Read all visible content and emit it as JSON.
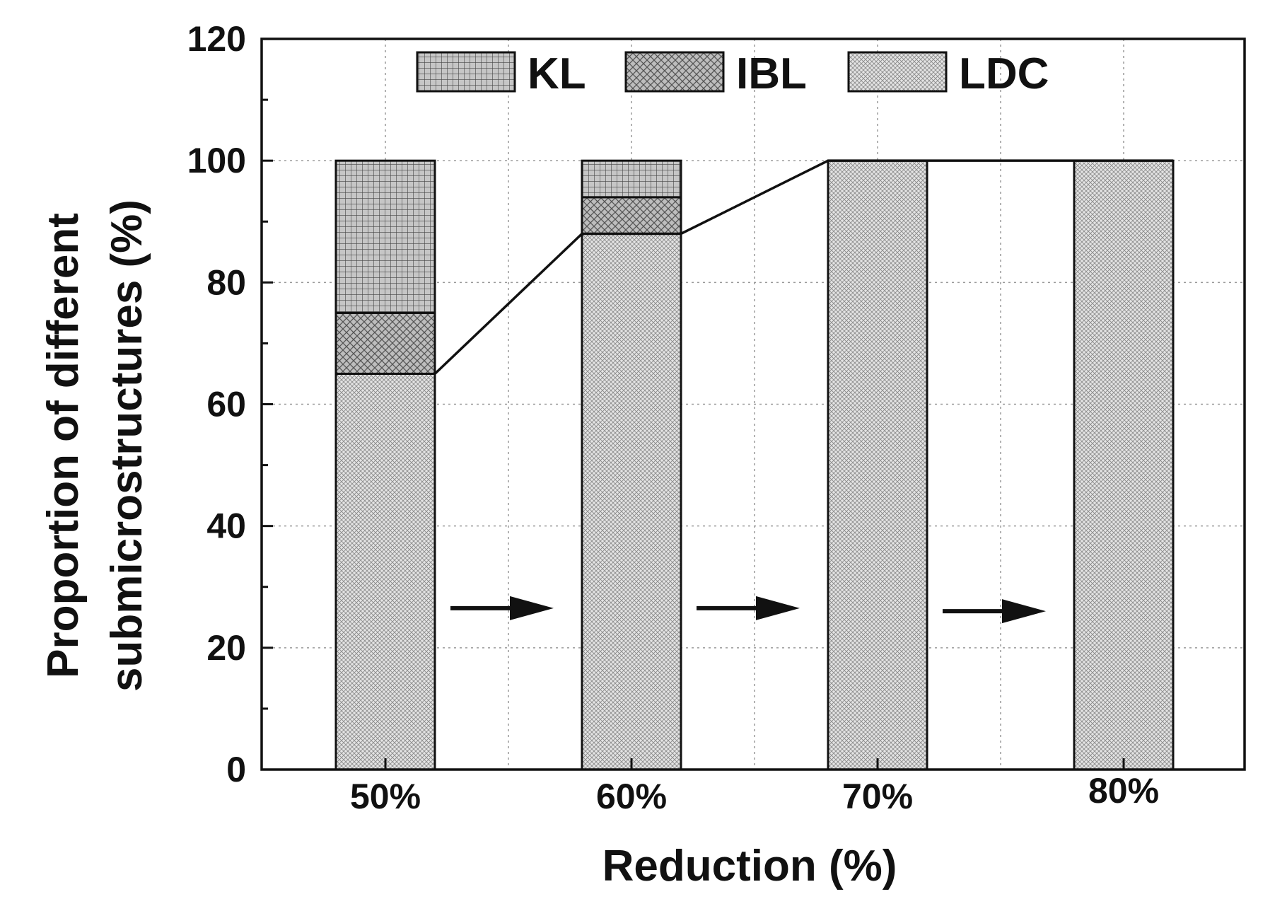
{
  "chart_data": {
    "type": "bar",
    "stacked": true,
    "categories": [
      "50%",
      "60%",
      "70%",
      "80%"
    ],
    "series": [
      {
        "name": "LDC",
        "values": [
          65,
          88,
          100,
          100
        ],
        "pattern": "fine-dots"
      },
      {
        "name": "IBL",
        "values": [
          10,
          6,
          0,
          0
        ],
        "pattern": "crosshatch"
      },
      {
        "name": "KL",
        "values": [
          25,
          6,
          0,
          0
        ],
        "pattern": "grid"
      }
    ],
    "trend_line": {
      "series": "LDC",
      "values": [
        65,
        88,
        100,
        100
      ]
    },
    "annotations": [
      "arrow",
      "arrow",
      "arrow"
    ],
    "xlabel": "Reduction (%)",
    "ylabel_line1": "Proportion of different",
    "ylabel_line2": "submicrostructures (%)",
    "ylim": [
      0,
      120
    ],
    "yticks": [
      0,
      20,
      40,
      60,
      80,
      100,
      120
    ],
    "grid": true,
    "legend_position": "top",
    "colors": {
      "axis": "#111111",
      "grid": "#9a9a9a",
      "bar_outline": "#111111"
    }
  }
}
